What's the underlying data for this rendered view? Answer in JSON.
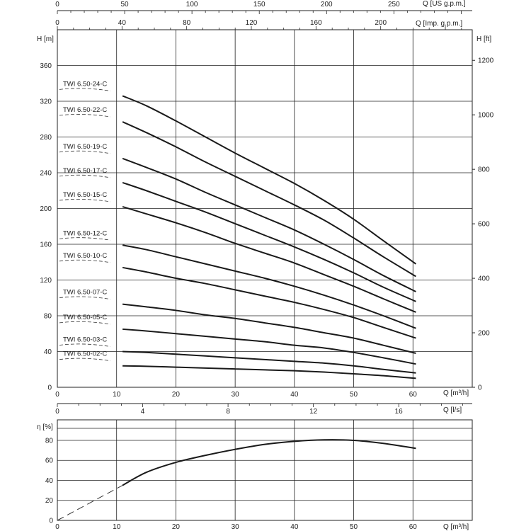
{
  "chart_data": [
    {
      "type": "line",
      "x_units": "Q [m³/h]",
      "xlim": [
        0,
        70
      ],
      "ylim_left": [
        0,
        400
      ],
      "ylabel_left": "H [m]",
      "ylabel_right": "H [ft]",
      "xlabel_bottom": "Q [m³/h]",
      "xlabel_top1": "Q [US g.p.m.]",
      "xlabel_top2": "Q [Imp. g.p.m.]",
      "left_ticks": [
        "0",
        "40",
        "80",
        "120",
        "160",
        "200",
        "240",
        "280",
        "320",
        "360"
      ],
      "right_ticks": [
        "0",
        "200",
        "400",
        "600",
        "800",
        "1000",
        "1200"
      ],
      "top_ticks_us": [
        "0",
        "50",
        "100",
        "150",
        "200",
        "250"
      ],
      "top_ticks_imp": [
        "0",
        "40",
        "80",
        "120",
        "160",
        "200"
      ],
      "bottom_ticks": [
        "0",
        "10",
        "20",
        "30",
        "40",
        "50",
        "60"
      ],
      "grid": true,
      "series": [
        {
          "name": "TWI 6.50-24-C",
          "x": [
            11,
            15,
            20,
            25,
            30,
            35,
            40,
            45,
            50,
            55,
            60.5
          ],
          "y": [
            326,
            315,
            298,
            280,
            262,
            245,
            228,
            209,
            188,
            164,
            138
          ]
        },
        {
          "name": "TWI 6.50-22-C",
          "x": [
            11,
            15,
            20,
            25,
            30,
            35,
            40,
            45,
            50,
            55,
            60.5
          ],
          "y": [
            297,
            285,
            269,
            252,
            236,
            220,
            204,
            187,
            167,
            146,
            124
          ]
        },
        {
          "name": "TWI 6.50-19-C",
          "x": [
            11,
            15,
            20,
            25,
            30,
            35,
            40,
            45,
            50,
            55,
            60.5
          ],
          "y": [
            256,
            246,
            233,
            218,
            204,
            190,
            176,
            160,
            143,
            125,
            107
          ]
        },
        {
          "name": "TWI 6.50-17-C",
          "x": [
            11,
            15,
            20,
            25,
            30,
            35,
            40,
            45,
            50,
            55,
            60.5
          ],
          "y": [
            229,
            220,
            208,
            196,
            183,
            170,
            157,
            143,
            128,
            112,
            96
          ]
        },
        {
          "name": "TWI 6.50-15-C",
          "x": [
            11,
            15,
            20,
            25,
            30,
            35,
            40,
            45,
            50,
            55,
            60.5
          ],
          "y": [
            202,
            194,
            184,
            173,
            161,
            150,
            139,
            126,
            113,
            99,
            84
          ]
        },
        {
          "name": "TWI 6.50-12-C",
          "x": [
            11,
            15,
            20,
            25,
            30,
            35,
            40,
            45,
            50,
            55,
            60.5
          ],
          "y": [
            159,
            154,
            146,
            138,
            130,
            122,
            113,
            103,
            92,
            80,
            66
          ]
        },
        {
          "name": "TWI 6.50-10-C",
          "x": [
            11,
            15,
            20,
            25,
            30,
            35,
            40,
            45,
            50,
            55,
            60.5
          ],
          "y": [
            134,
            129,
            122,
            116,
            109,
            102,
            95,
            87,
            78,
            67,
            55
          ]
        },
        {
          "name": "TWI 6.50-07-C",
          "x": [
            11,
            15,
            20,
            25,
            30,
            35,
            40,
            45,
            50,
            55,
            60.5
          ],
          "y": [
            93,
            90,
            86,
            81,
            77,
            72,
            67,
            61,
            55,
            47,
            38
          ]
        },
        {
          "name": "TWI 6.50-05-C",
          "x": [
            11,
            15,
            20,
            25,
            30,
            35,
            40,
            45,
            50,
            55,
            60.5
          ],
          "y": [
            65,
            63,
            60,
            57,
            54,
            51,
            47,
            44,
            39,
            33,
            26
          ]
        },
        {
          "name": "TWI 6.50-03-C",
          "x": [
            11,
            15,
            20,
            25,
            30,
            35,
            40,
            45,
            50,
            55,
            60.5
          ],
          "y": [
            40,
            39,
            37,
            35,
            33,
            31,
            29,
            27,
            24,
            20,
            16
          ]
        },
        {
          "name": "TWI 6.50-02-C",
          "x": [
            11,
            15,
            20,
            25,
            30,
            35,
            40,
            45,
            50,
            55,
            60.5
          ],
          "y": [
            24,
            23.5,
            22.5,
            21.5,
            20.5,
            19.5,
            18.5,
            17,
            15,
            13,
            10
          ]
        }
      ]
    },
    {
      "type": "line",
      "x_units": "Q [m³/h]",
      "xlim": [
        0,
        70
      ],
      "ylim": [
        0,
        100
      ],
      "ylabel": "η [%]",
      "xlabel_bottom": "Q [m³/h]",
      "xlabel_top": "Q [l/s]",
      "left_ticks": [
        "0",
        "20",
        "40",
        "60",
        "80"
      ],
      "top_ticks": [
        "0",
        "4",
        "8",
        "12",
        "16"
      ],
      "bottom_ticks": [
        "0",
        "10",
        "20",
        "30",
        "40",
        "50",
        "60"
      ],
      "grid": true,
      "series": [
        {
          "x": [
            11,
            15,
            20,
            25,
            30,
            35,
            40,
            45,
            50,
            55,
            60.5
          ],
          "y": [
            35,
            48,
            58,
            65,
            71,
            76,
            79,
            80.5,
            80,
            77,
            72
          ]
        }
      ],
      "dashed_segment": {
        "x": [
          0,
          11
        ],
        "y": [
          0,
          35
        ]
      }
    }
  ]
}
